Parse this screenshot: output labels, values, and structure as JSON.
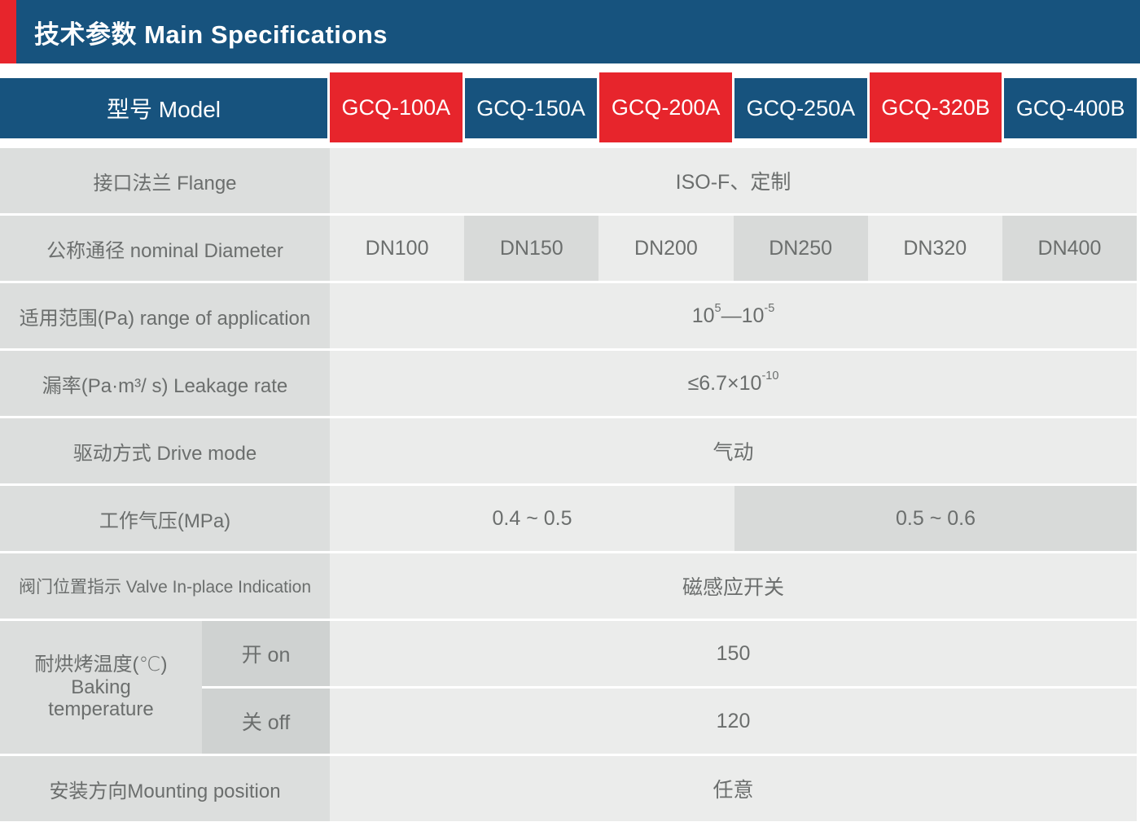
{
  "title": "技术参数 Main Specifications",
  "colors": {
    "brand_blue": "#17537e",
    "brand_red": "#e7252c",
    "label_gray": "#dcdedd",
    "value_light_gray": "#ebeceb",
    "value_dark_gray": "#d8dad9",
    "sub_label_gray": "#cfd2d1",
    "text_gray": "#6b6e6d"
  },
  "table": {
    "model_label": "型号 Model",
    "models": [
      "GCQ-100A",
      "GCQ-150A",
      "GCQ-200A",
      "GCQ-250A",
      "GCQ-320B",
      "GCQ-400B"
    ],
    "rows": {
      "flange": {
        "label": "接口法兰 Flange",
        "value": "ISO-F、定制"
      },
      "diameter": {
        "label": "公称通径 nominal Diameter",
        "values": [
          "DN100",
          "DN150",
          "DN200",
          "DN250",
          "DN320",
          "DN400"
        ]
      },
      "range": {
        "label": "适用范围(Pa) range of application",
        "base1": "10",
        "sup1": "5",
        "dash": " —",
        "base2": "10",
        "sup2": "-5"
      },
      "leakage": {
        "label": "漏率(Pa·m³/ s) Leakage rate",
        "base": "≤6.7×10",
        "sup": "-10"
      },
      "drive": {
        "label": "驱动方式 Drive mode",
        "value": "气动"
      },
      "pressure": {
        "label": "工作气压(MPa)",
        "value_left": "0.4 ~ 0.5",
        "value_right": "0.5 ~ 0.6"
      },
      "indication": {
        "label": "阀门位置指示 Valve In-place Indication",
        "value": "磁感应开关"
      },
      "baking": {
        "label_line1": "耐烘烤温度(℃)",
        "label_line2": "Baking",
        "label_line3": "temperature",
        "on_label": "开 on",
        "on_value": "150",
        "off_label": "关 off",
        "off_value": "120"
      },
      "mounting": {
        "label": "安装方向Mounting position",
        "value": "任意"
      }
    }
  }
}
